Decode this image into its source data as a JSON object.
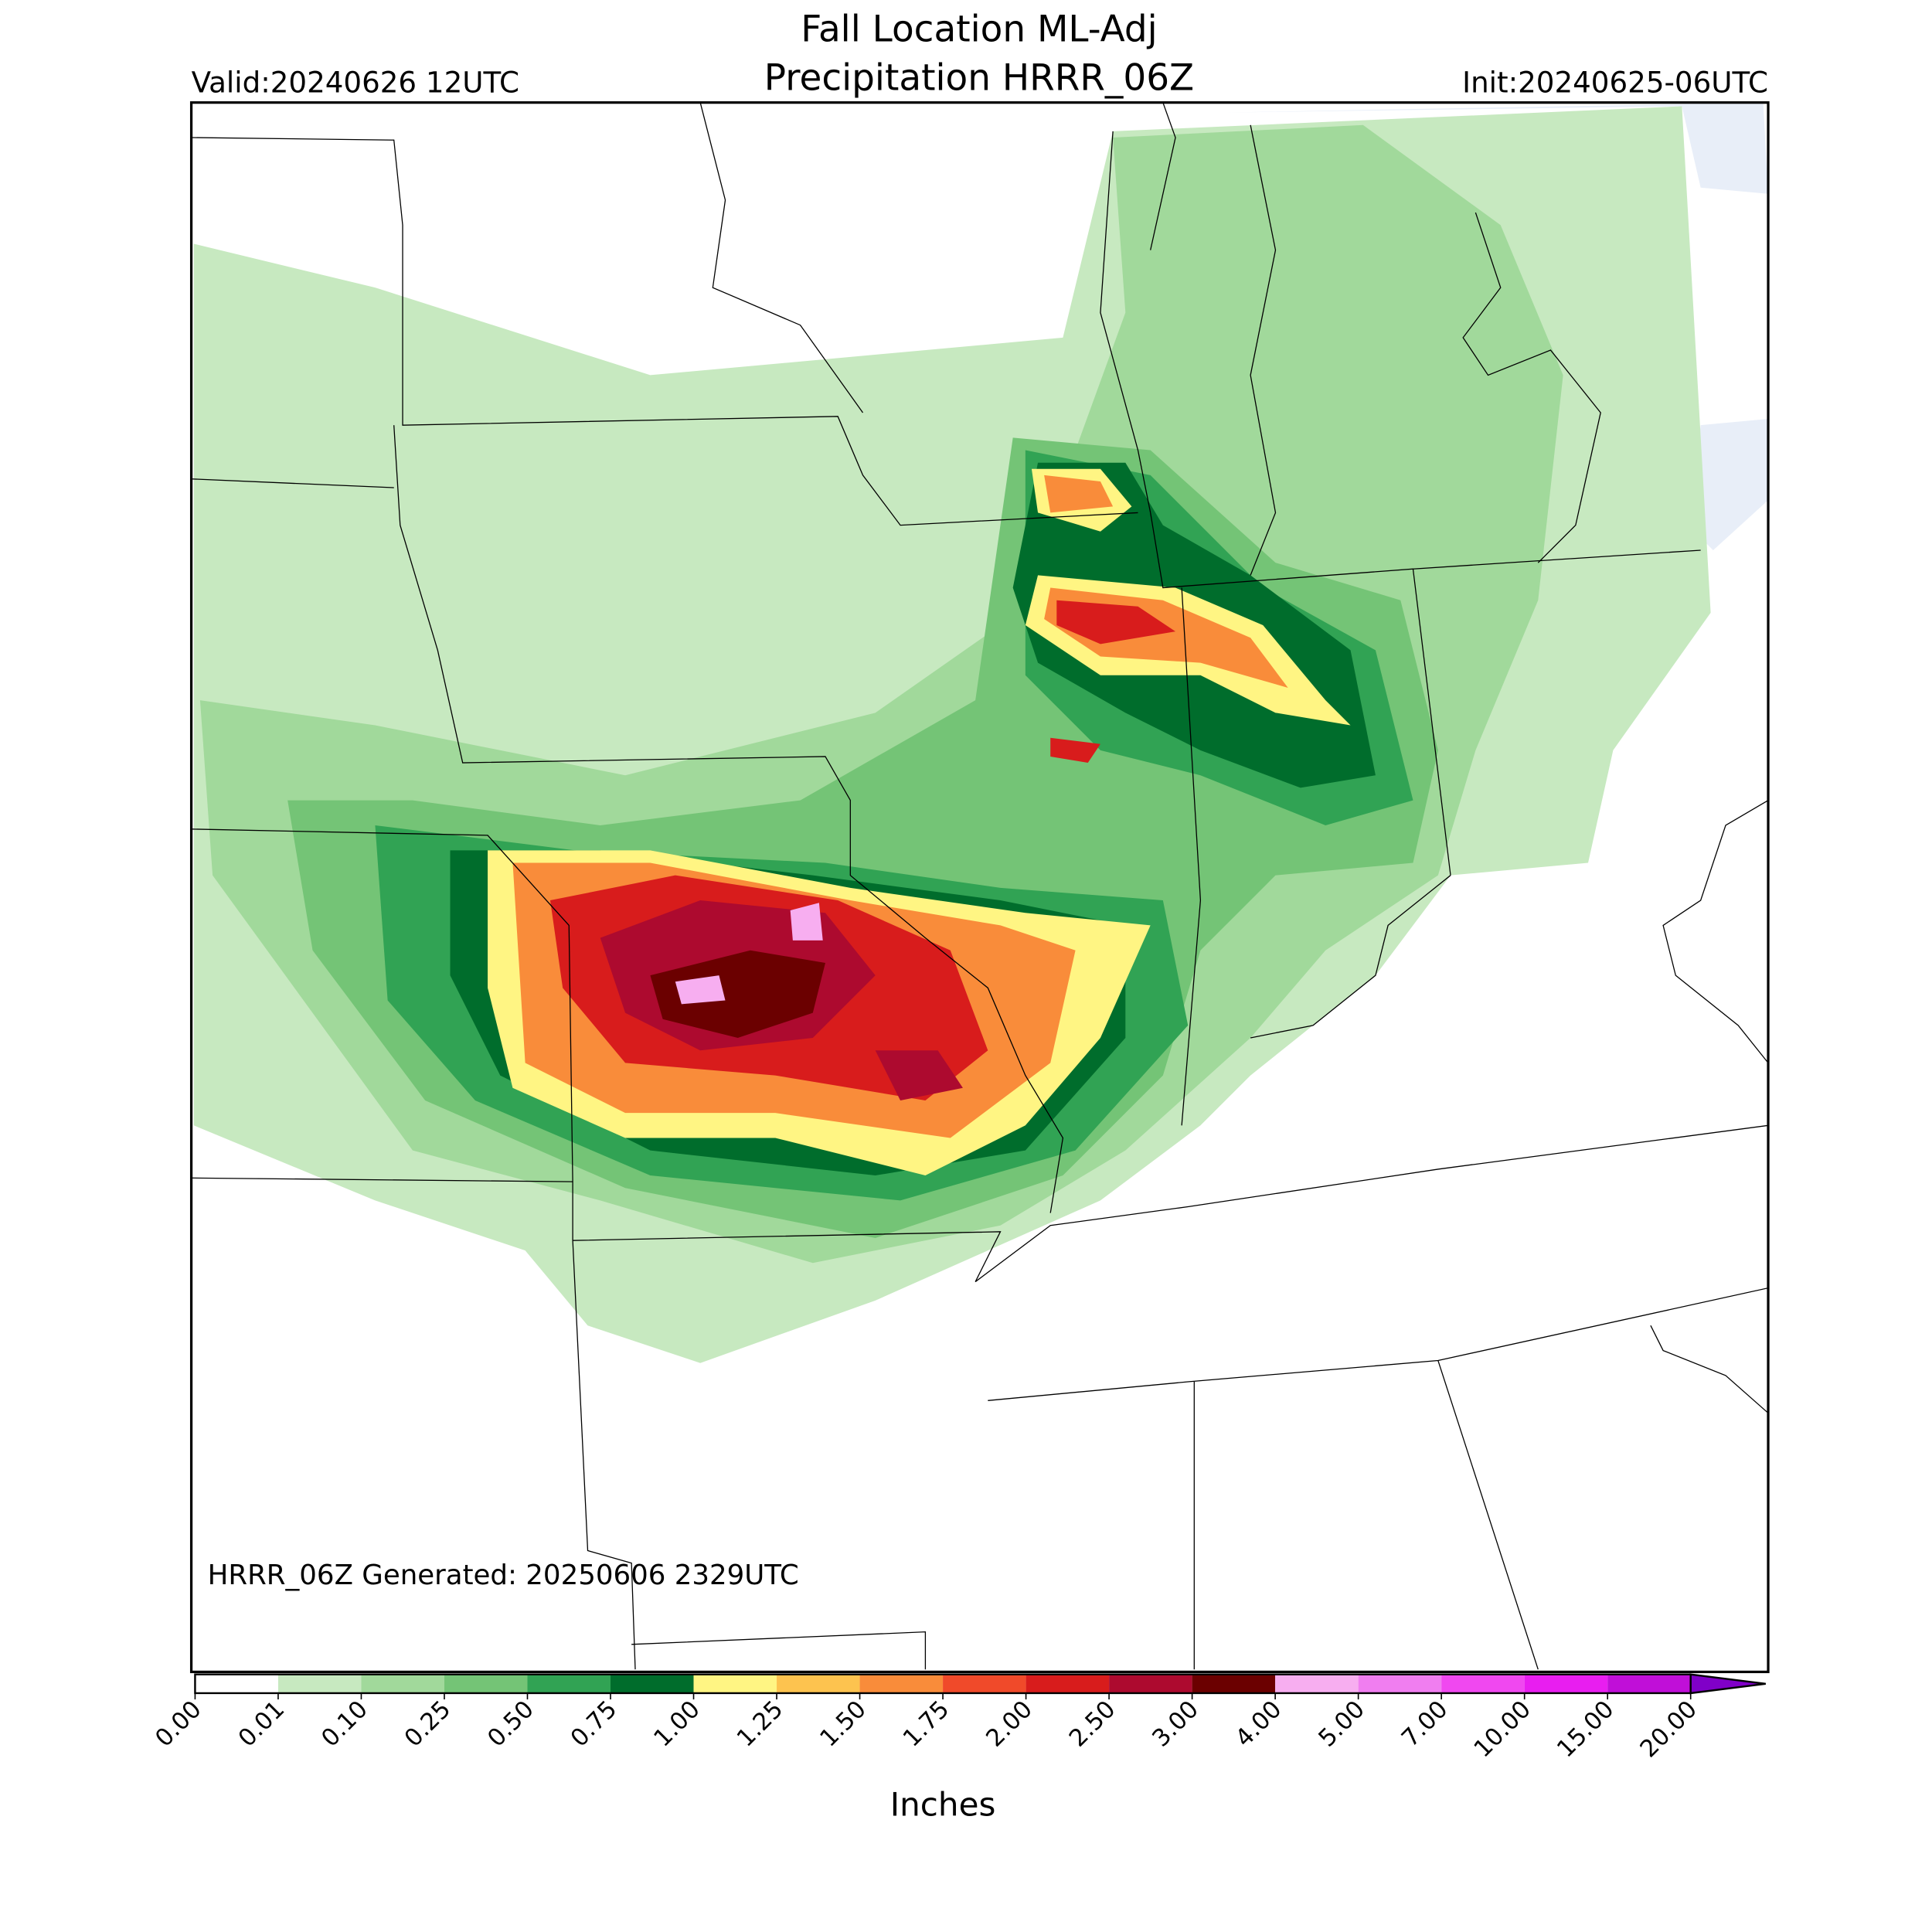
{
  "title": {
    "line1": "Fall Location ML-Adj",
    "line2": "Precipitation HRRR_06Z"
  },
  "valid": "Valid:20240626 12UTC",
  "init": "Init:20240625-06UTC",
  "generated": "HRRR_06Z Generated: 20250606 2329UTC",
  "colorbar": {
    "labels": [
      "0.00",
      "0.01",
      "0.10",
      "0.25",
      "0.50",
      "0.75",
      "1.00",
      "1.25",
      "1.50",
      "1.75",
      "2.00",
      "2.50",
      "3.00",
      "4.00",
      "5.00",
      "7.00",
      "10.00",
      "15.00",
      "20.00"
    ],
    "colors": [
      "#ffffff",
      "#c7e9c0",
      "#a1d99b",
      "#74c476",
      "#31a354",
      "#006d2c",
      "#fff583",
      "#fdc34f",
      "#f98c3a",
      "#f04a2a",
      "#d81c1c",
      "#ad0a2f",
      "#6b0000",
      "#f7aef0",
      "#f07ef0",
      "#f048f0",
      "#e81ef0",
      "#c00fd8"
    ],
    "over_color": "#8000c8",
    "label": "Inches"
  }
}
